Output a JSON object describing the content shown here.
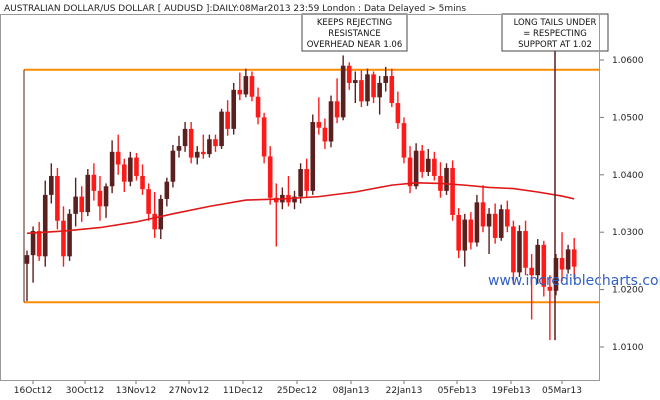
{
  "chart_data": {
    "type": "candlestick",
    "title": "AUSTRALIAN DOLLAR/US DOLLAR [ AUDUSD ]:DAILY:08Mar2013 23:59 London : Data Delayed > 5mins",
    "watermark": "www.incrediblecharts.com",
    "ylim": [
      1.005,
      1.065
    ],
    "y_ticks": [
      "1.0100",
      "1.0200",
      "1.0300",
      "1.0400",
      "1.0500",
      "1.0600"
    ],
    "x_ticks": [
      "16Oct12",
      "30Oct12",
      "13Nov12",
      "27Nov12",
      "11Dec12",
      "25Dec12",
      "08Jan13",
      "22Jan13",
      "05Feb13",
      "19Feb13",
      "05Mar13"
    ],
    "resistance_level": 1.0583,
    "support_level": 1.0178,
    "annotations": [
      {
        "lines": [
          "KEEPS REJECTING",
          "RESISTANCE",
          "OVERHEAD NEAR 1.06"
        ]
      },
      {
        "lines": [
          "LONG TAILS UNDER",
          "= RESPECTING",
          "SUPPORT AT 1.02"
        ]
      }
    ],
    "candles": [
      [
        1.0245,
        1.0268,
        1.018,
        1.026
      ],
      [
        1.026,
        1.031,
        1.0212,
        1.0302
      ],
      [
        1.0302,
        1.0318,
        1.025,
        1.0258
      ],
      [
        1.0258,
        1.039,
        1.024,
        1.0365
      ],
      [
        1.0365,
        1.042,
        1.035,
        1.0398
      ],
      [
        1.0398,
        1.0412,
        1.0305,
        1.032
      ],
      [
        1.032,
        1.0345,
        1.024,
        1.0258
      ],
      [
        1.0258,
        1.034,
        1.025,
        1.0332
      ],
      [
        1.0332,
        1.0395,
        1.031,
        1.0362
      ],
      [
        1.0362,
        1.038,
        1.0318,
        1.0335
      ],
      [
        1.0335,
        1.041,
        1.0328,
        1.04
      ],
      [
        1.04,
        1.042,
        1.0355,
        1.0372
      ],
      [
        1.0372,
        1.0398,
        1.032,
        1.0345
      ],
      [
        1.0345,
        1.0385,
        1.0325,
        1.038
      ],
      [
        1.038,
        1.046,
        1.0368,
        1.044
      ],
      [
        1.044,
        1.047,
        1.04,
        1.0418
      ],
      [
        1.0418,
        1.0428,
        1.037,
        1.0388
      ],
      [
        1.0388,
        1.044,
        1.038,
        1.043
      ],
      [
        1.043,
        1.0438,
        1.039,
        1.0398
      ],
      [
        1.0398,
        1.0418,
        1.0365,
        1.0375
      ],
      [
        1.0375,
        1.0385,
        1.032,
        1.0332
      ],
      [
        1.0332,
        1.037,
        1.029,
        1.0305
      ],
      [
        1.0305,
        1.0365,
        1.0288,
        1.0358
      ],
      [
        1.0358,
        1.0395,
        1.0345,
        1.0388
      ],
      [
        1.0388,
        1.0452,
        1.0378,
        1.0442
      ],
      [
        1.0442,
        1.0468,
        1.043,
        1.045
      ],
      [
        1.045,
        1.0492,
        1.044,
        1.048
      ],
      [
        1.048,
        1.0492,
        1.042,
        1.043
      ],
      [
        1.043,
        1.045,
        1.0418,
        1.044
      ],
      [
        1.044,
        1.047,
        1.0428,
        1.0436
      ],
      [
        1.0436,
        1.047,
        1.043,
        1.0462
      ],
      [
        1.0462,
        1.047,
        1.044,
        1.045
      ],
      [
        1.045,
        1.0515,
        1.0445,
        1.051
      ],
      [
        1.051,
        1.053,
        1.0468,
        1.048
      ],
      [
        1.048,
        1.056,
        1.047,
        1.0548
      ],
      [
        1.0548,
        1.0578,
        1.053,
        1.054
      ],
      [
        1.054,
        1.0585,
        1.0535,
        1.0572
      ],
      [
        1.0572,
        1.058,
        1.0528,
        1.0536
      ],
      [
        1.0536,
        1.0552,
        1.0488,
        1.05
      ],
      [
        1.05,
        1.0508,
        1.042,
        1.0432
      ],
      [
        1.0432,
        1.045,
        1.0348,
        1.036
      ],
      [
        1.036,
        1.0385,
        1.0275,
        1.0352
      ],
      [
        1.0352,
        1.0378,
        1.034,
        1.0365
      ],
      [
        1.0365,
        1.0398,
        1.0345,
        1.0352
      ],
      [
        1.0352,
        1.0372,
        1.034,
        1.0362
      ],
      [
        1.0362,
        1.042,
        1.035,
        1.041
      ],
      [
        1.041,
        1.0428,
        1.036,
        1.0372
      ],
      [
        1.0372,
        1.0505,
        1.0365,
        1.0492
      ],
      [
        1.0492,
        1.0535,
        1.047,
        1.0482
      ],
      [
        1.0482,
        1.0498,
        1.0445,
        1.0458
      ],
      [
        1.0458,
        1.0538,
        1.0448,
        1.0528
      ],
      [
        1.0528,
        1.0568,
        1.049,
        1.05
      ],
      [
        1.05,
        1.0608,
        1.0495,
        1.059
      ],
      [
        1.059,
        1.0596,
        1.0548,
        1.056
      ],
      [
        1.056,
        1.058,
        1.0525,
        1.0565
      ],
      [
        1.0565,
        1.0582,
        1.0518,
        1.0528
      ],
      [
        1.0528,
        1.0585,
        1.052,
        1.0575
      ],
      [
        1.0575,
        1.058,
        1.0525,
        1.0535
      ],
      [
        1.0535,
        1.0572,
        1.0505,
        1.056
      ],
      [
        1.056,
        1.0588,
        1.0545,
        1.0572
      ],
      [
        1.0572,
        1.0585,
        1.0518,
        1.0525
      ],
      [
        1.0525,
        1.0545,
        1.048,
        1.049
      ],
      [
        1.049,
        1.05,
        1.042,
        1.043
      ],
      [
        1.043,
        1.045,
        1.0368,
        1.038
      ],
      [
        1.038,
        1.0455,
        1.0375,
        1.0442
      ],
      [
        1.0442,
        1.0452,
        1.0395,
        1.0405
      ],
      [
        1.0405,
        1.0445,
        1.0398,
        1.0428
      ],
      [
        1.0428,
        1.044,
        1.039,
        1.0398
      ],
      [
        1.0398,
        1.0422,
        1.036,
        1.0372
      ],
      [
        1.0372,
        1.042,
        1.0365,
        1.0412
      ],
      [
        1.0412,
        1.0425,
        1.032,
        1.033
      ],
      [
        1.033,
        1.0342,
        1.0255,
        1.0268
      ],
      [
        1.0268,
        1.0332,
        1.024,
        1.0322
      ],
      [
        1.0322,
        1.0335,
        1.027,
        1.0282
      ],
      [
        1.0282,
        1.0365,
        1.0275,
        1.0352
      ],
      [
        1.0352,
        1.0382,
        1.03,
        1.031
      ],
      [
        1.031,
        1.0342,
        1.0262,
        1.0332
      ],
      [
        1.0332,
        1.035,
        1.028,
        1.029
      ],
      [
        1.029,
        1.0348,
        1.0285,
        1.034
      ],
      [
        1.034,
        1.0355,
        1.03,
        1.031
      ],
      [
        1.031,
        1.032,
        1.021,
        1.023
      ],
      [
        1.023,
        1.0312,
        1.0222,
        1.0302
      ],
      [
        1.0302,
        1.032,
        1.0225,
        1.0238
      ],
      [
        1.0238,
        1.0262,
        1.0148,
        1.0225
      ],
      [
        1.0225,
        1.0288,
        1.021,
        1.0278
      ],
      [
        1.0278,
        1.0285,
        1.0188,
        1.0205
      ],
      [
        1.0205,
        1.0225,
        1.0112,
        1.0198
      ],
      [
        1.0198,
        1.0262,
        1.019,
        1.0255
      ],
      [
        1.0255,
        1.03,
        1.0215,
        1.0235
      ],
      [
        1.0235,
        1.0278,
        1.0228,
        1.027
      ],
      [
        1.027,
        1.029,
        1.0218,
        1.024
      ]
    ],
    "ma": [
      [
        0,
        1.0298
      ],
      [
        6,
        1.0302
      ],
      [
        12,
        1.0308
      ],
      [
        18,
        1.0318
      ],
      [
        24,
        1.0332
      ],
      [
        30,
        1.0345
      ],
      [
        36,
        1.0356
      ],
      [
        42,
        1.0358
      ],
      [
        48,
        1.0362
      ],
      [
        54,
        1.037
      ],
      [
        60,
        1.0382
      ],
      [
        64,
        1.0386
      ],
      [
        68,
        1.0385
      ],
      [
        72,
        1.0382
      ],
      [
        76,
        1.0378
      ],
      [
        80,
        1.0376
      ],
      [
        84,
        1.037
      ],
      [
        88,
        1.0363
      ],
      [
        90,
        1.0358
      ]
    ]
  }
}
